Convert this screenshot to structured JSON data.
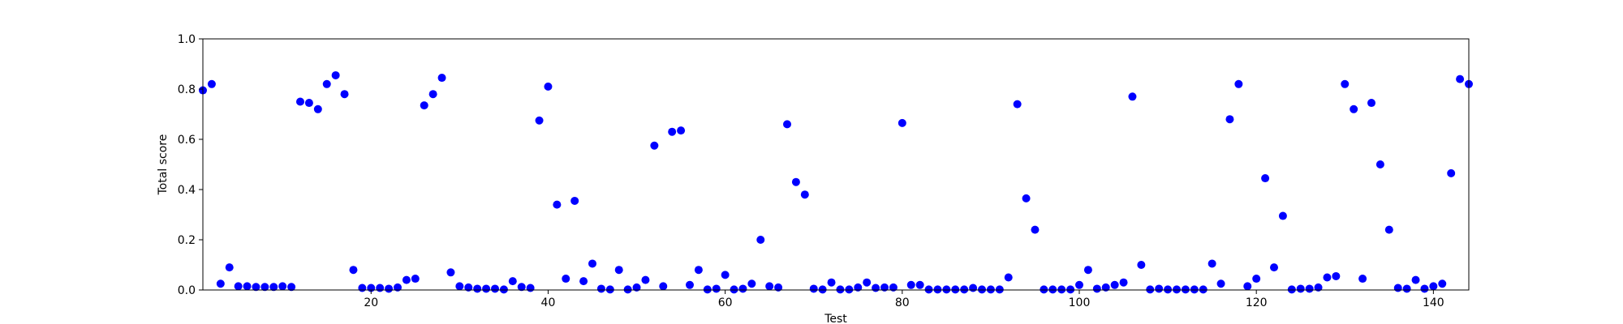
{
  "chart_data": {
    "type": "scatter",
    "title": "",
    "xlabel": "Test",
    "ylabel": "Total score",
    "xlim": [
      1,
      144
    ],
    "ylim": [
      0.0,
      1.0
    ],
    "grid": false,
    "legend": "none",
    "marker_color": "#0000ff",
    "x_ticks": [
      20,
      40,
      60,
      80,
      100,
      120,
      140
    ],
    "x_tick_labels": [
      "20",
      "40",
      "60",
      "80",
      "100",
      "120",
      "140"
    ],
    "y_ticks": [
      0.0,
      0.2,
      0.4,
      0.6,
      0.8,
      1.0
    ],
    "y_tick_labels": [
      "0.0",
      "0.2",
      "0.4",
      "0.6",
      "0.8",
      "1.0"
    ],
    "series": [
      {
        "x": [
          1,
          2,
          3,
          4,
          5,
          6,
          7,
          8,
          9,
          10,
          11,
          12,
          13,
          14,
          15,
          16,
          17,
          18,
          19,
          20,
          21,
          22,
          23,
          24,
          25,
          26,
          27,
          28,
          29,
          30,
          31,
          32,
          33,
          34,
          35,
          36,
          37,
          38,
          39,
          40,
          41,
          42,
          43,
          44,
          45,
          46,
          47,
          48,
          49,
          50,
          51,
          52,
          53,
          54,
          55,
          56,
          57,
          58,
          59,
          60,
          61,
          62,
          63,
          64,
          65,
          66,
          67,
          68,
          69,
          70,
          71,
          72,
          73,
          74,
          75,
          76,
          77,
          78,
          79,
          80,
          81,
          82,
          83,
          84,
          85,
          86,
          87,
          88,
          89,
          90,
          91,
          92,
          93,
          94,
          95,
          96,
          97,
          98,
          99,
          100,
          101,
          102,
          103,
          104,
          105,
          106,
          107,
          108,
          109,
          110,
          111,
          112,
          113,
          114,
          115,
          116,
          117,
          118,
          119,
          120,
          121,
          122,
          123,
          124,
          125,
          126,
          127,
          128,
          129,
          130,
          131,
          132,
          133,
          134,
          135,
          136,
          137,
          138,
          139,
          140,
          141,
          142,
          143,
          144
        ],
        "y": [
          0.795,
          0.82,
          0.025,
          0.09,
          0.015,
          0.015,
          0.012,
          0.012,
          0.012,
          0.015,
          0.012,
          0.75,
          0.745,
          0.72,
          0.82,
          0.855,
          0.78,
          0.08,
          0.008,
          0.008,
          0.008,
          0.005,
          0.01,
          0.04,
          0.045,
          0.735,
          0.78,
          0.845,
          0.07,
          0.015,
          0.01,
          0.005,
          0.005,
          0.005,
          0.002,
          0.035,
          0.012,
          0.008,
          0.675,
          0.81,
          0.34,
          0.045,
          0.355,
          0.035,
          0.105,
          0.005,
          0.002,
          0.08,
          0.002,
          0.01,
          0.04,
          0.575,
          0.015,
          0.63,
          0.635,
          0.02,
          0.08,
          0.002,
          0.005,
          0.06,
          0.002,
          0.005,
          0.025,
          0.2,
          0.015,
          0.01,
          0.66,
          0.43,
          0.38,
          0.005,
          0.002,
          0.03,
          0.002,
          0.002,
          0.01,
          0.03,
          0.008,
          0.01,
          0.01,
          0.665,
          0.02,
          0.02,
          0.002,
          0.002,
          0.002,
          0.002,
          0.002,
          0.008,
          0.002,
          0.002,
          0.002,
          0.05,
          0.74,
          0.365,
          0.24,
          0.002,
          0.002,
          0.002,
          0.002,
          0.02,
          0.08,
          0.005,
          0.01,
          0.02,
          0.03,
          0.77,
          0.1,
          0.002,
          0.005,
          0.002,
          0.002,
          0.002,
          0.002,
          0.002,
          0.105,
          0.025,
          0.68,
          0.82,
          0.015,
          0.045,
          0.445,
          0.09,
          0.295,
          0.002,
          0.005,
          0.005,
          0.01,
          0.05,
          0.055,
          0.82,
          0.72,
          0.045,
          0.745,
          0.5,
          0.24,
          0.008,
          0.005,
          0.04,
          0.005,
          0.015,
          0.025,
          0.465,
          0.84,
          0.82
        ]
      }
    ]
  }
}
